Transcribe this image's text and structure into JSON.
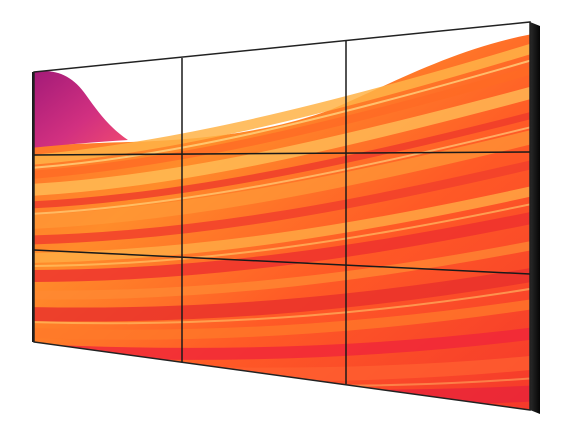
{
  "image": {
    "subject": "video-wall",
    "colors": {
      "background": "#ffffff",
      "bezel": "#111111",
      "seam": "#1a1a1a",
      "orange_light": "#ffb347",
      "orange": "#ff7a1a",
      "red": "#f0302a",
      "magenta": "#c8247a",
      "purple": "#8a1a7a",
      "sky": "#ffffff"
    }
  }
}
